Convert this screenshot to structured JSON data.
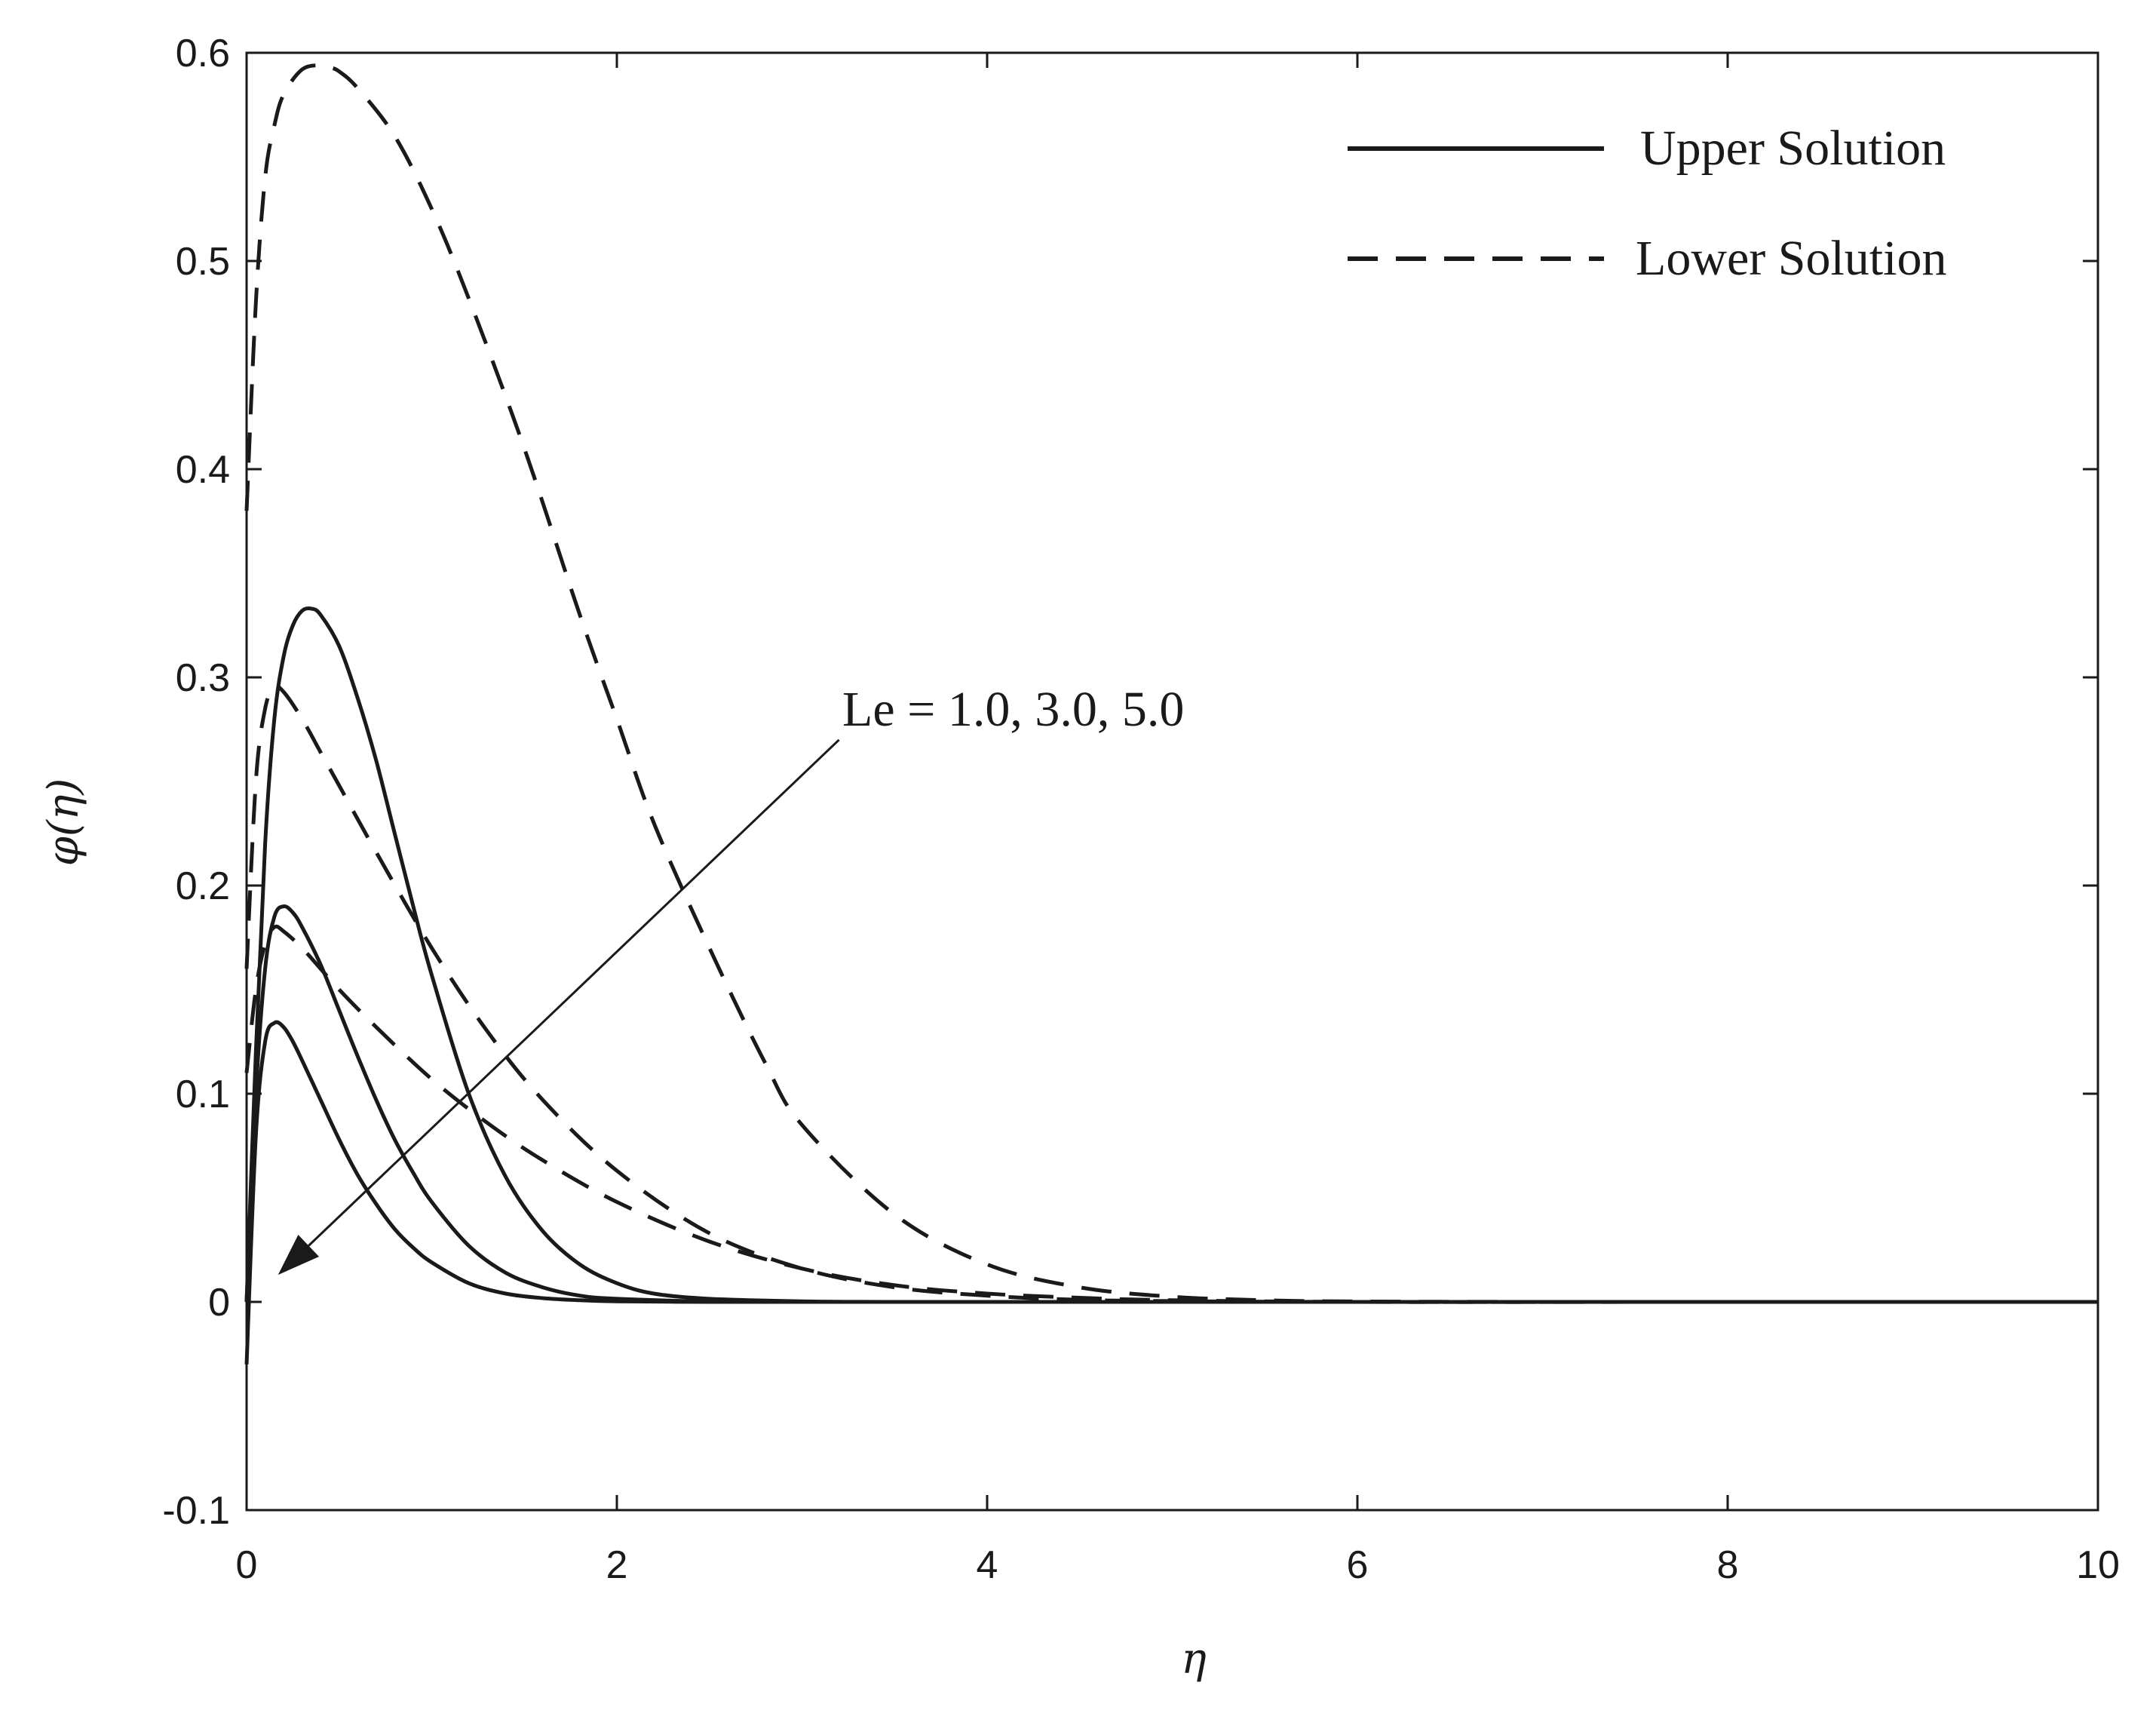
{
  "chart_data": {
    "type": "line",
    "title": "",
    "xlabel": "η",
    "ylabel": "φ(η)",
    "xlim": [
      0,
      10
    ],
    "ylim": [
      -0.1,
      0.6
    ],
    "xticks": [
      0,
      2,
      4,
      6,
      8,
      10
    ],
    "xtick_labels": [
      "0",
      "2",
      "4",
      "6",
      "8",
      "10"
    ],
    "yticks": [
      -0.1,
      0,
      0.1,
      0.2,
      0.3,
      0.4,
      0.5,
      0.6
    ],
    "ytick_labels": [
      "-0.1",
      "0",
      "0.1",
      "0.2",
      "0.3",
      "0.4",
      "0.5",
      "0.6"
    ],
    "grid": false,
    "legend_position": "top-right",
    "legend": [
      {
        "label": "Upper Solution",
        "style": "solid"
      },
      {
        "label": "Lower Solution",
        "style": "dashed"
      }
    ],
    "annotation": {
      "text": "Le = 1.0, 3.0, 5.0",
      "arrow_from": [
        3.2,
        0.27
      ],
      "arrow_to": [
        0.17,
        0.013
      ]
    },
    "series": [
      {
        "style": "solid",
        "x": [
          0,
          0.05,
          0.1,
          0.15,
          0.2,
          0.25,
          0.3,
          0.35,
          0.4,
          0.5,
          0.6,
          0.7,
          0.8,
          0.9,
          1.0,
          1.2,
          1.4,
          1.6,
          1.8,
          2.0,
          2.2,
          2.5,
          3.0,
          3.5,
          4.0,
          5.0,
          6.0,
          8.0,
          10.0
        ],
        "y": [
          0.0,
          0.12,
          0.22,
          0.28,
          0.31,
          0.325,
          0.332,
          0.333,
          0.33,
          0.315,
          0.29,
          0.26,
          0.225,
          0.19,
          0.157,
          0.1,
          0.06,
          0.034,
          0.018,
          0.009,
          0.004,
          0.0015,
          0.0003,
          0.0,
          0.0,
          0.0,
          0.0,
          0.0,
          0.0
        ]
      },
      {
        "style": "solid",
        "x": [
          0,
          0.05,
          0.1,
          0.15,
          0.2,
          0.25,
          0.3,
          0.4,
          0.5,
          0.6,
          0.7,
          0.8,
          0.9,
          1.0,
          1.2,
          1.4,
          1.6,
          1.8,
          2.0,
          2.5,
          3.0,
          4.0,
          6.0,
          8.0,
          10.0
        ],
        "y": [
          0.0,
          0.1,
          0.16,
          0.185,
          0.19,
          0.187,
          0.18,
          0.162,
          0.14,
          0.118,
          0.097,
          0.078,
          0.062,
          0.048,
          0.027,
          0.014,
          0.007,
          0.003,
          0.0015,
          0.0002,
          0.0,
          0.0,
          0.0,
          0.0,
          0.0
        ]
      },
      {
        "style": "solid",
        "x": [
          0,
          0.05,
          0.1,
          0.15,
          0.2,
          0.25,
          0.3,
          0.4,
          0.5,
          0.6,
          0.7,
          0.8,
          0.9,
          1.0,
          1.2,
          1.4,
          1.6,
          1.8,
          2.0,
          2.5,
          3.0,
          4.0,
          6.0,
          8.0,
          10.0
        ],
        "y": [
          -0.03,
          0.08,
          0.125,
          0.134,
          0.132,
          0.125,
          0.116,
          0.097,
          0.078,
          0.061,
          0.047,
          0.035,
          0.026,
          0.019,
          0.009,
          0.004,
          0.0018,
          0.0008,
          0.0003,
          0.0,
          0.0,
          0.0,
          0.0,
          0.0,
          0.0
        ]
      },
      {
        "style": "dashed",
        "x": [
          0,
          0.05,
          0.1,
          0.15,
          0.2,
          0.3,
          0.4,
          0.45,
          0.5,
          0.6,
          0.8,
          1.0,
          1.2,
          1.5,
          1.8,
          2.0,
          2.2,
          2.5,
          2.8,
          3.0,
          3.5,
          4.0,
          4.5,
          5.0,
          5.5,
          6.0,
          7.0,
          8.0,
          10.0
        ],
        "y": [
          0.38,
          0.48,
          0.54,
          0.565,
          0.58,
          0.592,
          0.594,
          0.593,
          0.591,
          0.583,
          0.56,
          0.525,
          0.482,
          0.41,
          0.33,
          0.28,
          0.23,
          0.17,
          0.115,
          0.085,
          0.042,
          0.018,
          0.007,
          0.0025,
          0.0008,
          0.0002,
          0.0,
          0.0,
          0.0
        ]
      },
      {
        "style": "dashed",
        "x": [
          0,
          0.05,
          0.1,
          0.15,
          0.2,
          0.3,
          0.4,
          0.5,
          0.7,
          1.0,
          1.3,
          1.6,
          2.0,
          2.5,
          3.0,
          3.5,
          4.0,
          4.5,
          5.0,
          6.0,
          8.0,
          10.0
        ],
        "y": [
          0.16,
          0.25,
          0.285,
          0.295,
          0.293,
          0.28,
          0.264,
          0.248,
          0.216,
          0.17,
          0.13,
          0.097,
          0.063,
          0.033,
          0.016,
          0.007,
          0.003,
          0.001,
          0.0004,
          0.0,
          0.0,
          0.0
        ]
      },
      {
        "style": "dashed",
        "x": [
          0,
          0.05,
          0.1,
          0.15,
          0.2,
          0.3,
          0.4,
          0.5,
          0.7,
          1.0,
          1.3,
          1.6,
          2.0,
          2.5,
          3.0,
          3.5,
          4.0,
          4.5,
          5.0,
          6.0,
          8.0,
          10.0
        ],
        "y": [
          0.11,
          0.15,
          0.172,
          0.18,
          0.178,
          0.17,
          0.16,
          0.15,
          0.132,
          0.107,
          0.086,
          0.068,
          0.048,
          0.029,
          0.016,
          0.008,
          0.004,
          0.002,
          0.0008,
          0.0,
          0.0,
          0.0
        ]
      }
    ]
  }
}
